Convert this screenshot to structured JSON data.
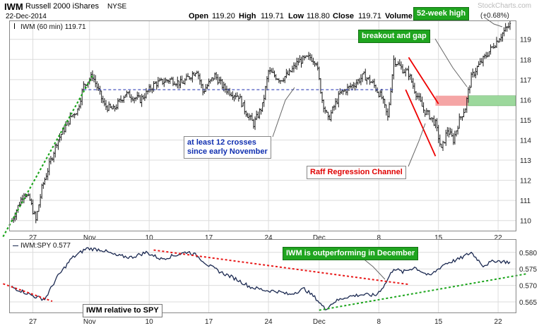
{
  "header": {
    "symbol": "IWM",
    "name": "Russell 2000 iShares",
    "exchange": "NYSE",
    "date": "22-Dec-2014",
    "open_label": "Open",
    "open": "119.20",
    "high_label": "High",
    "high": "119.71",
    "low_label": "Low",
    "low": "118.80",
    "close_label": "Close",
    "close": "119.71",
    "volume_label": "Volume",
    "change": "(+0.68%)",
    "watermark": "StockCharts.com"
  },
  "colors": {
    "price_bars": "#1a1a1a",
    "ratio_line": "#1a2850",
    "blue_dashed": "#1f2fb0",
    "green_dashed": "#1ca51c",
    "red_dashed": "#e81818",
    "channel": "#ee0000",
    "gap_red": "#f5a5a5",
    "gap_green": "#9cd89c",
    "callout_green_bg": "#1fa51f",
    "callout_blue_text": "#102fb0",
    "callout_red_text": "#e00000"
  },
  "chart_data": [
    {
      "type": "ohlc",
      "title": "IWM (60 min) 119.71",
      "ylim": [
        109.5,
        119.9
      ],
      "ticks": [
        "110",
        "111",
        "112",
        "113",
        "114",
        "115",
        "116",
        "117",
        "118",
        "119"
      ],
      "x_labels": [
        {
          "label": "27",
          "i": 14
        },
        {
          "label": "Nov",
          "i": 52
        },
        {
          "label": "10",
          "i": 92
        },
        {
          "label": "17",
          "i": 132
        },
        {
          "label": "24",
          "i": 172
        },
        {
          "label": "Dec",
          "i": 206
        },
        {
          "label": "8",
          "i": 246
        },
        {
          "label": "15",
          "i": 286
        },
        {
          "label": "22",
          "i": 326
        }
      ],
      "bar_count": 335,
      "anchors": [
        [
          0,
          110.0
        ],
        [
          8,
          111.4
        ],
        [
          12,
          111.0
        ],
        [
          16,
          110.0
        ],
        [
          20,
          111.6
        ],
        [
          30,
          113.9
        ],
        [
          40,
          115.2
        ],
        [
          44,
          115.5
        ],
        [
          48,
          116.7
        ],
        [
          54,
          117.2
        ],
        [
          62,
          115.7
        ],
        [
          68,
          115.5
        ],
        [
          76,
          116.3
        ],
        [
          86,
          116.0
        ],
        [
          96,
          116.8
        ],
        [
          106,
          117.0
        ],
        [
          114,
          116.8
        ],
        [
          124,
          117.5
        ],
        [
          128,
          116.4
        ],
        [
          136,
          117.2
        ],
        [
          142,
          116.6
        ],
        [
          148,
          116.3
        ],
        [
          152,
          116.2
        ],
        [
          156,
          115.5
        ],
        [
          162,
          114.8
        ],
        [
          168,
          115.7
        ],
        [
          172,
          117.4
        ],
        [
          180,
          117.0
        ],
        [
          186,
          117.3
        ],
        [
          192,
          117.9
        ],
        [
          200,
          118.1
        ],
        [
          204,
          117.9
        ],
        [
          208,
          116.0
        ],
        [
          212,
          115.0
        ],
        [
          220,
          116.3
        ],
        [
          230,
          116.8
        ],
        [
          236,
          117.2
        ],
        [
          242,
          116.8
        ],
        [
          248,
          116.1
        ],
        [
          252,
          115.1
        ],
        [
          256,
          118.0
        ],
        [
          262,
          117.5
        ],
        [
          266,
          117.3
        ],
        [
          270,
          116.5
        ],
        [
          276,
          115.5
        ],
        [
          280,
          115.2
        ],
        [
          284,
          114.8
        ],
        [
          288,
          113.5
        ],
        [
          292,
          114.5
        ],
        [
          296,
          114.0
        ],
        [
          300,
          115.0
        ],
        [
          304,
          115.6
        ],
        [
          306,
          116.4
        ],
        [
          308,
          117.1
        ],
        [
          312,
          117.6
        ],
        [
          318,
          118.2
        ],
        [
          324,
          118.8
        ],
        [
          330,
          119.4
        ],
        [
          334,
          119.71
        ]
      ],
      "blue_line_level": 116.5,
      "gap_zone": [
        115.7,
        116.2
      ],
      "channel_upper": [
        [
          266,
          118.1
        ],
        [
          286,
          115.8
        ]
      ],
      "channel_lower": [
        [
          264,
          116.5
        ],
        [
          284,
          113.2
        ]
      ],
      "green_trend": [
        [
          -6,
          109.2
        ],
        [
          54,
          117.2
        ]
      ]
    },
    {
      "type": "line",
      "title": "IWM:SPY 0.577",
      "ylim": [
        0.5618,
        0.5838
      ],
      "ticks": [
        "0.565",
        "0.570",
        "0.575",
        "0.580"
      ],
      "x_labels": [
        {
          "label": "27",
          "i": 14
        },
        {
          "label": "Nov",
          "i": 52
        },
        {
          "label": "10",
          "i": 92
        },
        {
          "label": "17",
          "i": 132
        },
        {
          "label": "24",
          "i": 172
        },
        {
          "label": "Dec",
          "i": 206
        },
        {
          "label": "8",
          "i": 246
        },
        {
          "label": "15",
          "i": 286
        },
        {
          "label": "22",
          "i": 326
        }
      ],
      "anchors": [
        [
          0,
          0.5695
        ],
        [
          8,
          0.568
        ],
        [
          16,
          0.5665
        ],
        [
          22,
          0.5658
        ],
        [
          30,
          0.5723
        ],
        [
          40,
          0.5782
        ],
        [
          50,
          0.5812
        ],
        [
          60,
          0.5808
        ],
        [
          70,
          0.579
        ],
        [
          80,
          0.5785
        ],
        [
          90,
          0.58
        ],
        [
          100,
          0.578
        ],
        [
          110,
          0.5792
        ],
        [
          118,
          0.5802
        ],
        [
          124,
          0.579
        ],
        [
          132,
          0.576
        ],
        [
          140,
          0.574
        ],
        [
          150,
          0.572
        ],
        [
          160,
          0.5695
        ],
        [
          170,
          0.5685
        ],
        [
          178,
          0.5682
        ],
        [
          186,
          0.5672
        ],
        [
          196,
          0.569
        ],
        [
          204,
          0.566
        ],
        [
          210,
          0.5628
        ],
        [
          216,
          0.565
        ],
        [
          224,
          0.5665
        ],
        [
          234,
          0.5672
        ],
        [
          244,
          0.567
        ],
        [
          250,
          0.5702
        ],
        [
          256,
          0.5752
        ],
        [
          262,
          0.574
        ],
        [
          270,
          0.5755
        ],
        [
          280,
          0.5728
        ],
        [
          290,
          0.5765
        ],
        [
          300,
          0.578
        ],
        [
          308,
          0.58
        ],
        [
          316,
          0.576
        ],
        [
          324,
          0.5775
        ],
        [
          334,
          0.577
        ]
      ],
      "red_trend": [
        [
          -6,
          0.5705
        ],
        [
          27,
          0.5652
        ]
      ],
      "red_trend_2": [
        [
          95,
          0.5807
        ],
        [
          266,
          0.5703
        ]
      ],
      "green_trend": [
        [
          206,
          0.5625
        ],
        [
          345,
          0.5735
        ]
      ]
    }
  ],
  "annotations": {
    "crosses_line1": "at least 12 crosses",
    "crosses_line2": "since early November",
    "raff": "Raff Regression Channel",
    "breakout": "breakout and gap",
    "week_high": "52-week high",
    "outperform": "IWM is outperforming in December",
    "relative": "IWM relative to SPY"
  }
}
